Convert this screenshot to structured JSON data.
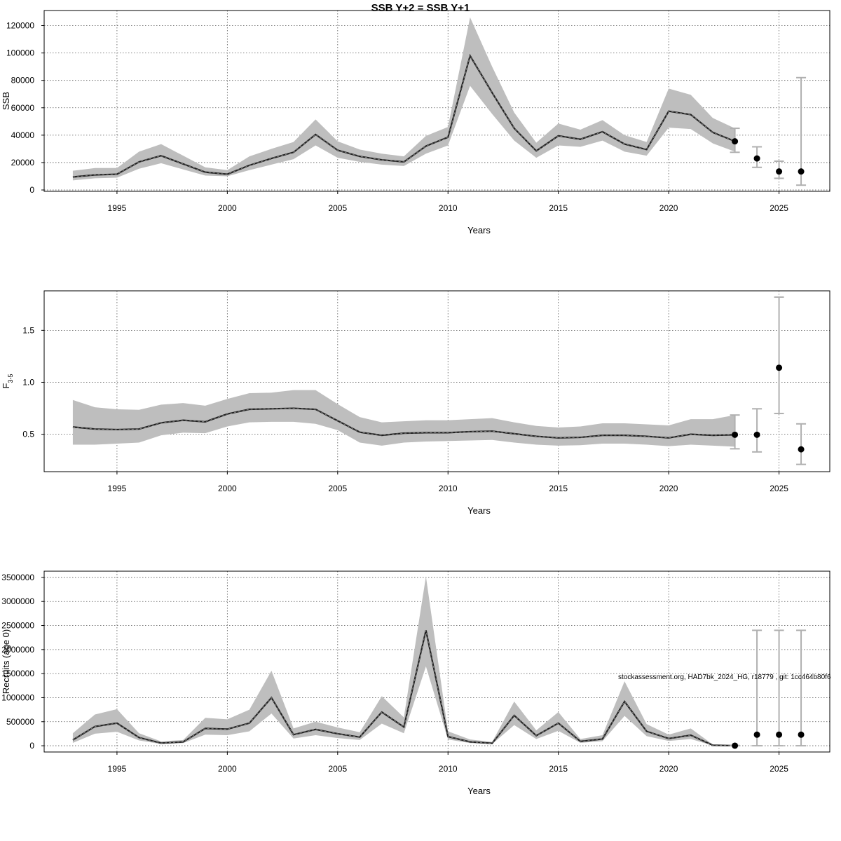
{
  "title": "SSB Y+2 = SSB Y+1",
  "footer_note": "stockassessment.org, HAD7bk_2024_HG, r18779 , git: 1cc464b80f6",
  "colors": {
    "band": "#bebebe",
    "line": "#000000",
    "grid": "#555555",
    "errorbar": "#b0b0b0",
    "point": "#000000"
  },
  "chart_data": [
    {
      "type": "line",
      "id": "ssb",
      "xlabel": "Years",
      "ylabel": "SSB",
      "ylabel_sub": "",
      "xlim": [
        1991.7,
        2027.3
      ],
      "ylim": [
        -1000,
        131000
      ],
      "xticks": [
        1995,
        2000,
        2005,
        2010,
        2015,
        2020,
        2025
      ],
      "yticks": [
        0,
        20000,
        40000,
        60000,
        80000,
        100000,
        120000
      ],
      "ytick_labels": [
        "0",
        "20000",
        "40000",
        "60000",
        "80000",
        "100000",
        "120000"
      ],
      "grid": true,
      "years": [
        1993,
        1994,
        1995,
        1996,
        1997,
        1998,
        1999,
        2000,
        2001,
        2002,
        2003,
        2004,
        2005,
        2006,
        2007,
        2008,
        2009,
        2010,
        2011,
        2012,
        2013,
        2014,
        2015,
        2016,
        2017,
        2018,
        2019,
        2020,
        2021,
        2022,
        2023
      ],
      "estimate": [
        9500,
        11000,
        11500,
        20500,
        25000,
        19000,
        13000,
        11500,
        18000,
        23000,
        27500,
        40500,
        29000,
        24500,
        22000,
        20500,
        32000,
        38500,
        98000,
        71000,
        45000,
        28500,
        39500,
        37000,
        42500,
        33500,
        29500,
        57500,
        55000,
        42000,
        35500
      ],
      "lower": [
        7000,
        8500,
        9000,
        15500,
        19500,
        15000,
        10500,
        10000,
        14500,
        18500,
        22500,
        32500,
        23500,
        20500,
        18500,
        17500,
        26500,
        32500,
        76000,
        55500,
        36000,
        23500,
        32500,
        31500,
        36000,
        28000,
        25000,
        45500,
        44500,
        34000,
        28000
      ],
      "upper": [
        14000,
        16000,
        16000,
        28000,
        33500,
        25000,
        16500,
        14500,
        24500,
        30000,
        35000,
        51500,
        35500,
        29500,
        26500,
        24500,
        39500,
        46000,
        126000,
        90000,
        56500,
        34500,
        48500,
        44000,
        51000,
        40000,
        35000,
        74000,
        69500,
        52500,
        45000
      ],
      "forecast": [
        {
          "year": 2023,
          "value": 35500,
          "low": 27500,
          "high": 45000
        },
        {
          "year": 2024,
          "value": 23000,
          "low": 16500,
          "high": 31500
        },
        {
          "year": 2025,
          "value": 13500,
          "low": 8500,
          "high": 21000
        },
        {
          "year": 2026,
          "value": 13500,
          "low": 3500,
          "high": 82000
        }
      ]
    },
    {
      "type": "line",
      "id": "fbar",
      "xlabel": "Years",
      "ylabel": "F",
      "ylabel_sub": "3-5",
      "xlim": [
        1991.7,
        2027.3
      ],
      "ylim": [
        0.14,
        1.88
      ],
      "xticks": [
        1995,
        2000,
        2005,
        2010,
        2015,
        2020,
        2025
      ],
      "yticks": [
        0.5,
        1.0,
        1.5
      ],
      "ytick_labels": [
        "0.5",
        "1.0",
        "1.5"
      ],
      "grid": true,
      "years": [
        1993,
        1994,
        1995,
        1996,
        1997,
        1998,
        1999,
        2000,
        2001,
        2002,
        2003,
        2004,
        2005,
        2006,
        2007,
        2008,
        2009,
        2010,
        2011,
        2012,
        2013,
        2014,
        2015,
        2016,
        2017,
        2018,
        2019,
        2020,
        2021,
        2022,
        2023
      ],
      "estimate": [
        0.57,
        0.55,
        0.545,
        0.55,
        0.61,
        0.635,
        0.62,
        0.695,
        0.74,
        0.745,
        0.75,
        0.74,
        0.63,
        0.52,
        0.49,
        0.51,
        0.515,
        0.515,
        0.525,
        0.53,
        0.505,
        0.48,
        0.465,
        0.47,
        0.49,
        0.49,
        0.48,
        0.465,
        0.5,
        0.49,
        0.495
      ],
      "lower": [
        0.4,
        0.4,
        0.41,
        0.42,
        0.49,
        0.515,
        0.51,
        0.575,
        0.615,
        0.62,
        0.62,
        0.6,
        0.54,
        0.42,
        0.39,
        0.42,
        0.43,
        0.435,
        0.44,
        0.445,
        0.42,
        0.4,
        0.39,
        0.395,
        0.41,
        0.41,
        0.4,
        0.385,
        0.4,
        0.39,
        0.38
      ],
      "upper": [
        0.83,
        0.76,
        0.74,
        0.735,
        0.785,
        0.8,
        0.775,
        0.84,
        0.895,
        0.9,
        0.925,
        0.925,
        0.79,
        0.665,
        0.615,
        0.625,
        0.635,
        0.635,
        0.645,
        0.655,
        0.615,
        0.58,
        0.565,
        0.575,
        0.605,
        0.605,
        0.595,
        0.585,
        0.645,
        0.645,
        0.685
      ],
      "forecast": [
        {
          "year": 2023,
          "value": 0.495,
          "low": 0.36,
          "high": 0.685
        },
        {
          "year": 2024,
          "value": 0.495,
          "low": 0.33,
          "high": 0.745
        },
        {
          "year": 2025,
          "value": 1.14,
          "low": 0.7,
          "high": 1.82
        },
        {
          "year": 2026,
          "value": 0.355,
          "low": 0.21,
          "high": 0.6
        }
      ]
    },
    {
      "type": "line",
      "id": "recruits",
      "xlabel": "Years",
      "ylabel": "Recruits (age 0)",
      "ylabel_sub": "",
      "xlim": [
        1991.7,
        2027.3
      ],
      "ylim": [
        -130000,
        3630000
      ],
      "xticks": [
        1995,
        2000,
        2005,
        2010,
        2015,
        2020,
        2025
      ],
      "yticks": [
        0,
        500000,
        1000000,
        1500000,
        2000000,
        2500000,
        3000000,
        3500000
      ],
      "ytick_labels": [
        "0",
        "500000",
        "1000000",
        "1500000",
        "2000000",
        "2500000",
        "3000000",
        "3500000"
      ],
      "grid": true,
      "years": [
        1993,
        1994,
        1995,
        1996,
        1997,
        1998,
        1999,
        2000,
        2001,
        2002,
        2003,
        2004,
        2005,
        2006,
        2007,
        2008,
        2009,
        2010,
        2011,
        2012,
        2013,
        2014,
        2015,
        2016,
        2017,
        2018,
        2019,
        2020,
        2021,
        2022,
        2023
      ],
      "estimate": [
        120000,
        400000,
        470000,
        170000,
        55000,
        80000,
        360000,
        345000,
        470000,
        1000000,
        230000,
        340000,
        250000,
        180000,
        700000,
        390000,
        2400000,
        190000,
        80000,
        50000,
        630000,
        210000,
        470000,
        90000,
        140000,
        920000,
        300000,
        150000,
        220000,
        10000,
        2000
      ],
      "lower": [
        60000,
        250000,
        290000,
        110000,
        35000,
        55000,
        230000,
        220000,
        300000,
        670000,
        150000,
        220000,
        160000,
        120000,
        460000,
        260000,
        1650000,
        130000,
        55000,
        35000,
        430000,
        140000,
        310000,
        60000,
        95000,
        620000,
        200000,
        100000,
        140000,
        5000,
        500
      ],
      "upper": [
        260000,
        650000,
        760000,
        260000,
        90000,
        120000,
        580000,
        550000,
        750000,
        1560000,
        360000,
        500000,
        380000,
        280000,
        1030000,
        590000,
        3520000,
        300000,
        130000,
        80000,
        920000,
        320000,
        700000,
        140000,
        220000,
        1340000,
        450000,
        230000,
        360000,
        25000,
        6000
      ],
      "forecast": [
        {
          "year": 2023,
          "value": 2000,
          "low": 500,
          "high": 6000
        },
        {
          "year": 2024,
          "value": 230000,
          "low": 0,
          "high": 2400000
        },
        {
          "year": 2025,
          "value": 230000,
          "low": 0,
          "high": 2400000
        },
        {
          "year": 2026,
          "value": 230000,
          "low": 0,
          "high": 2400000
        }
      ]
    }
  ]
}
